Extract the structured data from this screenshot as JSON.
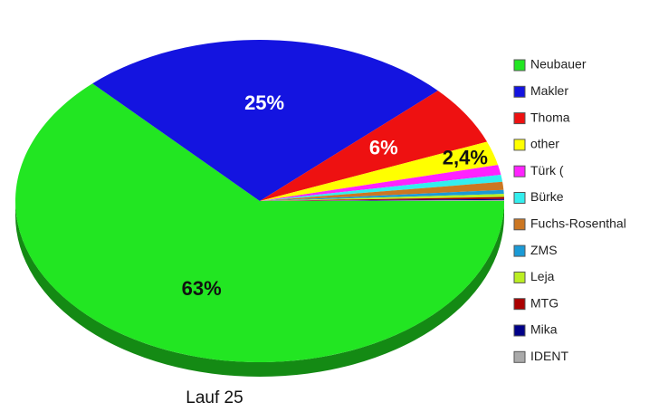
{
  "chart_data": {
    "type": "pie",
    "title": "Lauf 25",
    "series": [
      {
        "name": "Neubauer",
        "color": "#22e622",
        "values": [
          63
        ]
      },
      {
        "name": "Makler",
        "color": "#1414e0",
        "values": [
          25
        ]
      },
      {
        "name": "Thoma",
        "color": "#ee1111",
        "values": [
          6
        ]
      },
      {
        "name": "other",
        "color": "#ffff00",
        "values": [
          2.4
        ]
      },
      {
        "name": "Türk (",
        "color": "#ff22ff",
        "values": [
          1
        ]
      },
      {
        "name": "Bürke",
        "color": "#33eeee",
        "values": [
          0.7
        ]
      },
      {
        "name": "Fuchs-Rosenthal",
        "color": "#cc7722",
        "values": [
          0.8
        ]
      },
      {
        "name": "ZMS",
        "color": "#1a9ad6",
        "values": [
          0.4
        ]
      },
      {
        "name": "Leja",
        "color": "#bbee22",
        "values": [
          0.3
        ]
      },
      {
        "name": "MTG",
        "color": "#aa0000",
        "values": [
          0.2
        ]
      },
      {
        "name": "Mika",
        "color": "#000088",
        "values": [
          0.1
        ]
      },
      {
        "name": "IDENT",
        "color": "#aaaaaa",
        "values": [
          0.1
        ]
      }
    ],
    "value_labels": [
      "63%",
      "25%",
      "6%",
      "2,4%",
      null,
      null,
      null,
      null,
      null,
      null,
      null,
      null
    ],
    "legend": "right"
  }
}
